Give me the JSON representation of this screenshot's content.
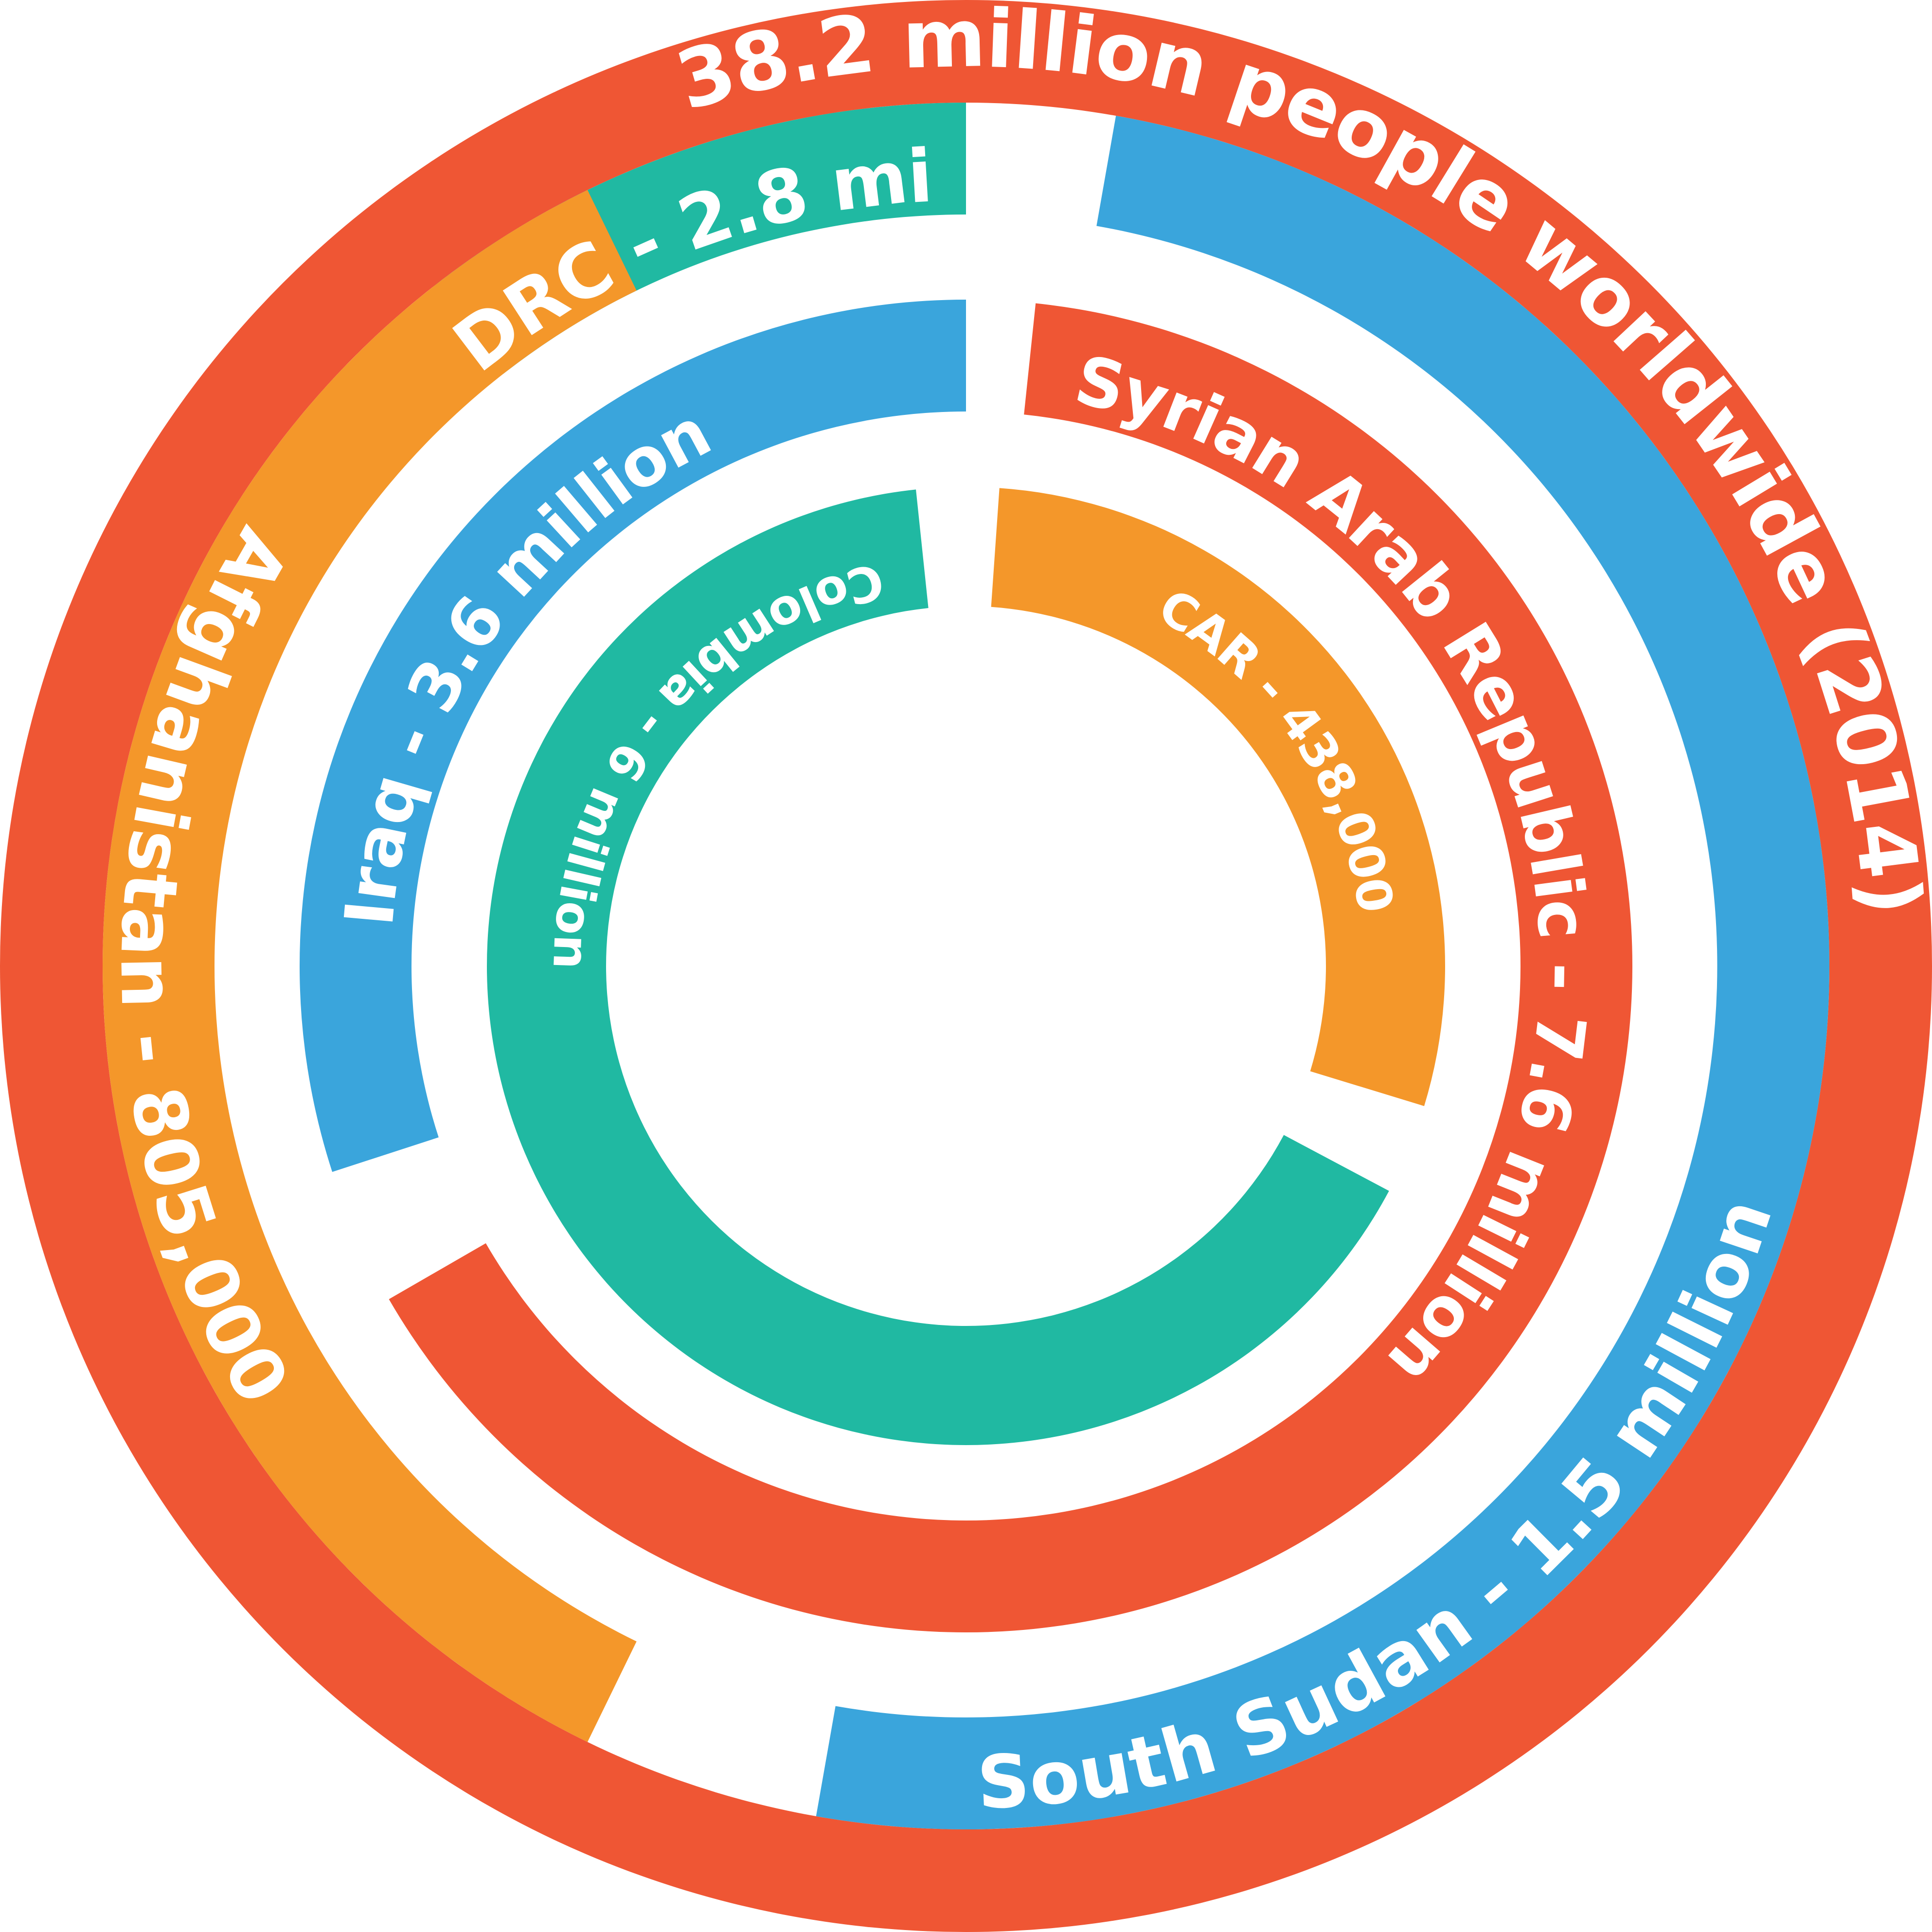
{
  "colors": {
    "outer": "#ef5634",
    "blue": "#3aa5dc",
    "teal": "#20b9a2",
    "orange": "#f4972a",
    "red": "#ef5634",
    "text": "#ffffff"
  },
  "chart_data": {
    "type": "radial-bar",
    "title": "38.2 million people worldwide (2014)",
    "total": {
      "value": 38.2,
      "unit": "million"
    },
    "rings": [
      {
        "ring": 1,
        "segments": [
          {
            "label": "DRC - 2.8 mil",
            "value": 2.8,
            "color": "#20b9a2"
          },
          {
            "label": "South Sudan - 1.5 million",
            "value": 1.5,
            "color": "#3aa5dc"
          },
          {
            "label": "Afghanistan - 805,000",
            "value": 0.805,
            "color": "#f4972a"
          }
        ]
      },
      {
        "ring": 2,
        "segments": [
          {
            "label": "Iraq - 3.6 million",
            "value": 3.6,
            "color": "#3aa5dc"
          },
          {
            "label": "Syrian Arab Republic - 7.6 million",
            "value": 7.6,
            "color": "#ef5634"
          }
        ]
      },
      {
        "ring": 3,
        "segments": [
          {
            "label": "Colombia - 6 million",
            "value": 6,
            "color": "#20b9a2"
          },
          {
            "label": "CAR - 438,000",
            "value": 0.438,
            "color": "#f4972a"
          }
        ]
      }
    ]
  }
}
